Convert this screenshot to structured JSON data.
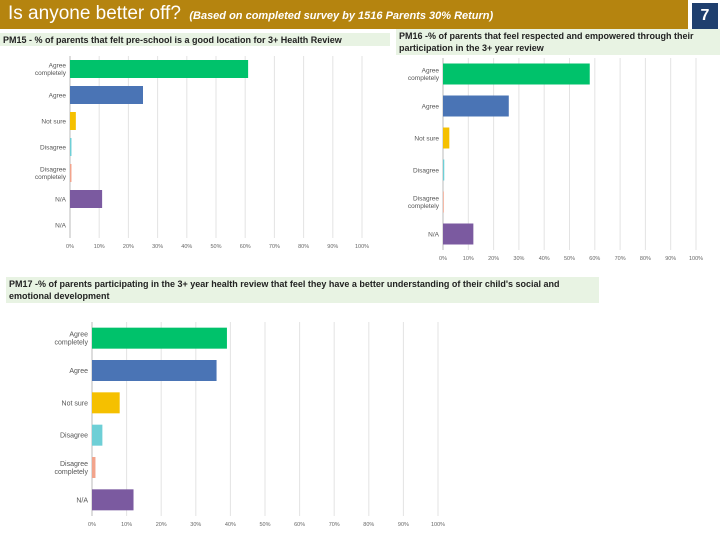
{
  "header": {
    "title": "Is anyone better off?",
    "subtitle": "(Based on completed survey by 1516 Parents 30% Return)",
    "page_number": "7"
  },
  "colors": {
    "header_bg": "#b5840f",
    "page_badge_bg": "#1f3f6e",
    "caption_bg": "#e8f3e3"
  },
  "chart_data": [
    {
      "type": "bar",
      "orientation": "horizontal",
      "title": "PM15 - % of parents that felt pre-school is a good location for 3+ Health Review",
      "categories": [
        "Agree completely",
        "Agree",
        "Not sure",
        "Disagree",
        "Disagree completely",
        "N/A",
        "N/A"
      ],
      "values": [
        61,
        25,
        2,
        0.5,
        0.5,
        11,
        0
      ],
      "colors": [
        "#00c26b",
        "#4a74b5",
        "#f5c000",
        "#6ecfd6",
        "#f2a48c",
        "#7b5aa0",
        "#7b5aa0"
      ],
      "xlim": [
        0,
        100
      ],
      "xticks": [
        "0%",
        "10%",
        "20%",
        "30%",
        "40%",
        "50%",
        "60%",
        "70%",
        "80%",
        "90%",
        "100%"
      ]
    },
    {
      "type": "bar",
      "orientation": "horizontal",
      "title": "PM16 -% of parents that feel respected and empowered through their participation in the 3+ year review",
      "categories": [
        "Agree completely",
        "Agree",
        "Not sure",
        "Disagree",
        "Disagree completely",
        "N/A"
      ],
      "values": [
        58,
        26,
        2.5,
        0.5,
        0.3,
        12
      ],
      "colors": [
        "#00c26b",
        "#4a74b5",
        "#f5c000",
        "#6ecfd6",
        "#f2a48c",
        "#7b5aa0"
      ],
      "xlim": [
        0,
        100
      ],
      "xticks": [
        "0%",
        "10%",
        "20%",
        "30%",
        "40%",
        "50%",
        "60%",
        "70%",
        "80%",
        "90%",
        "100%"
      ]
    },
    {
      "type": "bar",
      "orientation": "horizontal",
      "title": "PM17 -% of parents participating in the 3+ year health review that feel they have a better understanding of their child's social and emotional development",
      "categories": [
        "Agree completely",
        "Agree",
        "Not sure",
        "Disagree",
        "Disagree completely",
        "N/A"
      ],
      "values": [
        39,
        36,
        8,
        3,
        1,
        12
      ],
      "colors": [
        "#00c26b",
        "#4a74b5",
        "#f5c000",
        "#6ecfd6",
        "#f2a48c",
        "#7b5aa0"
      ],
      "xlim": [
        0,
        100
      ],
      "xticks": [
        "0%",
        "10%",
        "20%",
        "30%",
        "40%",
        "50%",
        "60%",
        "70%",
        "80%",
        "90%",
        "100%"
      ]
    }
  ]
}
